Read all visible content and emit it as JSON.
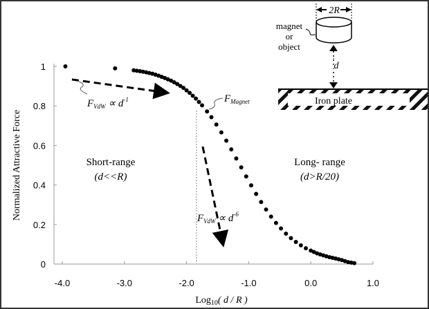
{
  "chart_data": {
    "type": "scatter",
    "title": "",
    "xlabel_main": "Log",
    "xlabel_sub": "10",
    "xlabel_rest": "( d / R )",
    "ylabel": "Normalized Attractive Force",
    "xlim": [
      -4.0,
      1.0
    ],
    "ylim": [
      0,
      1
    ],
    "xticks": [
      "-4.0",
      "-3.0",
      "-2.0",
      "-1.0",
      "0.0",
      "1.0"
    ],
    "xtick_values": [
      -4,
      -3,
      -2,
      -1,
      0,
      1
    ],
    "yticks": [
      "0",
      "0.2",
      "0.4",
      "0.6",
      "0.8",
      "1"
    ],
    "ytick_values": [
      0,
      0.2,
      0.4,
      0.6,
      0.8,
      1
    ],
    "grid": false,
    "divider_x": -1.84,
    "series": [
      {
        "name": "F_Magnet",
        "x": [
          -3.95,
          -3.15,
          -2.85,
          -2.7,
          -2.55,
          -2.45,
          -2.35,
          -2.25,
          -2.15,
          -2.05,
          -1.95,
          -1.85,
          -1.75,
          -1.67,
          -1.6,
          -1.52,
          -1.44,
          -1.36,
          -1.28,
          -1.2,
          -1.12,
          -1.04,
          -0.96,
          -0.88,
          -0.8,
          -0.72,
          -0.64,
          -0.56,
          -0.48,
          -0.4,
          -0.32,
          -0.24,
          -0.16,
          -0.08,
          0.0,
          0.1,
          0.2,
          0.3,
          0.4,
          0.5,
          0.6,
          0.7
        ],
        "y": [
          1.0,
          0.99,
          0.98,
          0.973,
          0.963,
          0.953,
          0.941,
          0.928,
          0.911,
          0.891,
          0.866,
          0.837,
          0.803,
          0.772,
          0.743,
          0.706,
          0.666,
          0.624,
          0.58,
          0.534,
          0.489,
          0.443,
          0.398,
          0.355,
          0.314,
          0.276,
          0.24,
          0.208,
          0.18,
          0.154,
          0.131,
          0.112,
          0.095,
          0.08,
          0.068,
          0.054,
          0.044,
          0.035,
          0.028,
          0.02,
          0.01,
          0.005
        ]
      }
    ],
    "annotations": {
      "vdw1_base": "F",
      "vdw1_sub": "VdW",
      "vdw1_rel": " ∝ d",
      "vdw1_exp": "-1",
      "magnet_base": "F",
      "magnet_sub": "Magnet",
      "short_range": "Short-range",
      "short_range_cond": "(d<<R)",
      "long_range": "Long- range",
      "long_range_cond": "(d>R/20)",
      "vdw6_base": "F",
      "vdw6_sub": "VdW",
      "vdw6_rel": " ∝ d",
      "vdw6_exp": "-6"
    },
    "diagram": {
      "width_label": "2R",
      "object_label_1": "magnet",
      "object_label_2": "or",
      "object_label_3": "object",
      "distance_label": "d",
      "plate_label": "Iron plate"
    }
  }
}
